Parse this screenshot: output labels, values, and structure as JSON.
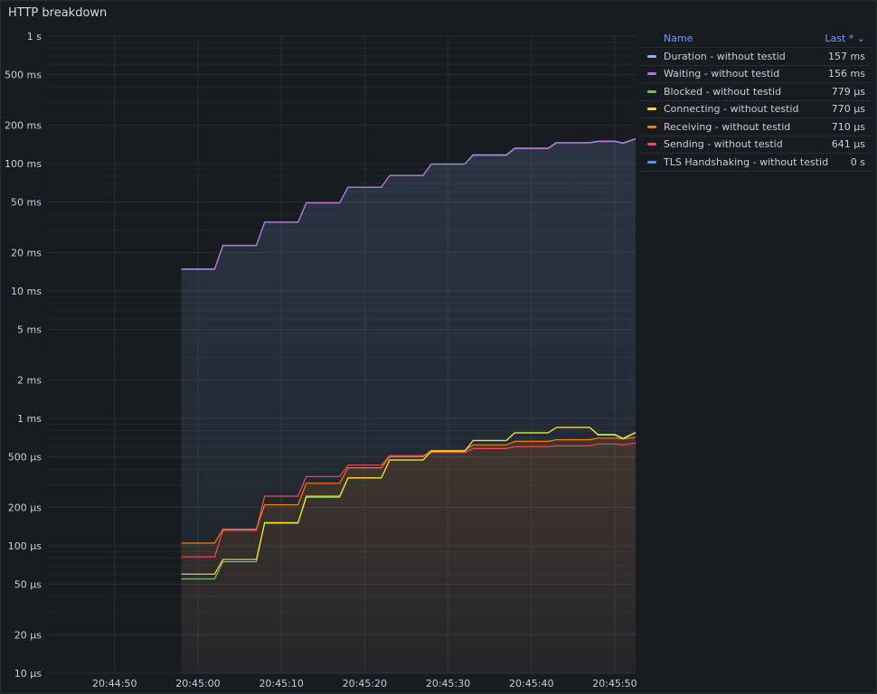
{
  "panel": {
    "title": "HTTP breakdown"
  },
  "legend": {
    "col_name": "Name",
    "col_last": "Last *",
    "sort_icon": "chevron-down-icon",
    "rows": [
      {
        "name": "Duration - without testid",
        "value": "157 ms",
        "color": "#8ab8ff"
      },
      {
        "name": "Waiting - without testid",
        "value": "156 ms",
        "color": "#b877d9"
      },
      {
        "name": "Blocked - without testid",
        "value": "779 µs",
        "color": "#73bf69"
      },
      {
        "name": "Connecting - without testid",
        "value": "770 µs",
        "color": "#fade2a"
      },
      {
        "name": "Receiving - without testid",
        "value": "710 µs",
        "color": "#ff780a"
      },
      {
        "name": "Sending - without testid",
        "value": "641 µs",
        "color": "#f2495c"
      },
      {
        "name": "TLS Handshaking - without testid",
        "value": "0 s",
        "color": "#5794f2"
      }
    ]
  },
  "chart_data": {
    "type": "line",
    "scale": "log",
    "ylim": [
      1e-05,
      1
    ],
    "y_ticks": [
      {
        "v": 1,
        "label": "1 s"
      },
      {
        "v": 0.5,
        "label": "500 ms"
      },
      {
        "v": 0.2,
        "label": "200 ms"
      },
      {
        "v": 0.1,
        "label": "100 ms"
      },
      {
        "v": 0.05,
        "label": "50 ms"
      },
      {
        "v": 0.02,
        "label": "20 ms"
      },
      {
        "v": 0.01,
        "label": "10 ms"
      },
      {
        "v": 0.005,
        "label": "5 ms"
      },
      {
        "v": 0.002,
        "label": "2 ms"
      },
      {
        "v": 0.001,
        "label": "1 ms"
      },
      {
        "v": 0.0005,
        "label": "500 µs"
      },
      {
        "v": 0.0002,
        "label": "200 µs"
      },
      {
        "v": 0.0001,
        "label": "100 µs"
      },
      {
        "v": 5e-05,
        "label": "50 µs"
      },
      {
        "v": 2e-05,
        "label": "20 µs"
      },
      {
        "v": 1e-05,
        "label": "10 µs"
      }
    ],
    "x_ticks": [
      "20:44:50",
      "20:45:00",
      "20:45:10",
      "20:45:20",
      "20:45:30",
      "20:45:40",
      "20:45:50"
    ],
    "x_tick_times": [
      -10,
      0,
      10,
      20,
      30,
      40,
      50
    ],
    "xlim": [
      -18,
      52.5
    ],
    "times": [
      -2,
      2,
      3,
      7,
      8,
      12,
      13,
      17,
      18,
      22,
      23,
      27,
      28,
      32,
      33,
      37,
      38,
      42,
      43,
      47,
      48,
      50,
      51,
      52.5
    ],
    "series": [
      {
        "name": "Duration - without testid",
        "color": "#8ab8ff",
        "values": [
          0.0149,
          0.0149,
          0.0228,
          0.0228,
          0.0347,
          0.0347,
          0.0492,
          0.0492,
          0.0652,
          0.0652,
          0.0807,
          0.0807,
          0.0992,
          0.0992,
          0.117,
          0.117,
          0.132,
          0.132,
          0.146,
          0.146,
          0.15,
          0.15,
          0.145,
          0.157
        ]
      },
      {
        "name": "Waiting - without testid",
        "color": "#b877d9",
        "values": [
          0.0148,
          0.0148,
          0.0227,
          0.0227,
          0.0346,
          0.0346,
          0.0491,
          0.0491,
          0.0651,
          0.0651,
          0.0806,
          0.0806,
          0.0991,
          0.0991,
          0.116,
          0.116,
          0.131,
          0.131,
          0.145,
          0.145,
          0.149,
          0.149,
          0.144,
          0.156
        ]
      },
      {
        "name": "Blocked - without testid",
        "color": "#73bf69",
        "values": [
          5.5e-05,
          5.5e-05,
          7.5e-05,
          7.5e-05,
          0.00015,
          0.00015,
          0.00024,
          0.00024,
          0.00034,
          0.00034,
          0.00047,
          0.00047,
          0.00055,
          0.00055,
          0.00067,
          0.00067,
          0.00077,
          0.00077,
          0.00085,
          0.00085,
          0.00075,
          0.00075,
          0.0007,
          0.000779
        ]
      },
      {
        "name": "Connecting - without testid",
        "color": "#fade2a",
        "values": [
          6e-05,
          6e-05,
          7.8e-05,
          7.8e-05,
          0.000152,
          0.000152,
          0.000245,
          0.000245,
          0.000342,
          0.000342,
          0.000472,
          0.000472,
          0.000555,
          0.000555,
          0.00067,
          0.00067,
          0.00077,
          0.00077,
          0.00085,
          0.00085,
          0.00074,
          0.00074,
          0.00069,
          0.00077
        ]
      },
      {
        "name": "Receiving - without testid",
        "color": "#ff780a",
        "values": [
          0.000105,
          0.000105,
          0.000135,
          0.000135,
          0.00021,
          0.00021,
          0.00031,
          0.00031,
          0.00041,
          0.00041,
          0.0005,
          0.0005,
          0.00056,
          0.00056,
          0.00062,
          0.00062,
          0.00066,
          0.00066,
          0.00068,
          0.00068,
          0.0007,
          0.0007,
          0.00069,
          0.00071
        ]
      },
      {
        "name": "Sending - without testid",
        "color": "#f2495c",
        "values": [
          8.2e-05,
          8.2e-05,
          0.000132,
          0.000132,
          0.000245,
          0.000245,
          0.00035,
          0.00035,
          0.00043,
          0.00043,
          0.00051,
          0.00051,
          0.00054,
          0.00054,
          0.00058,
          0.00058,
          0.0006,
          0.0006,
          0.00061,
          0.00061,
          0.00063,
          0.00063,
          0.00062,
          0.000641
        ]
      }
    ]
  }
}
